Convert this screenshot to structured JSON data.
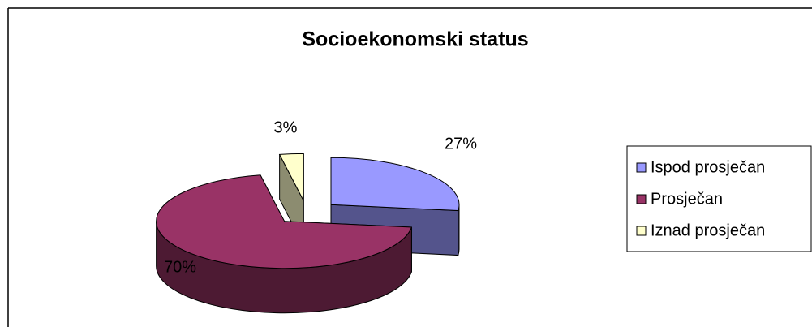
{
  "chart_data": {
    "type": "pie3d",
    "title": "Socioekonomski status",
    "categories": [
      "Ispod prosječan",
      "Prosječan",
      "Iznad prosječan"
    ],
    "values": [
      27,
      70,
      3
    ],
    "value_labels": [
      "27%",
      "70%",
      "3%"
    ],
    "colors": [
      "#9999ff",
      "#993366",
      "#ffffcc"
    ],
    "legend": "right"
  }
}
